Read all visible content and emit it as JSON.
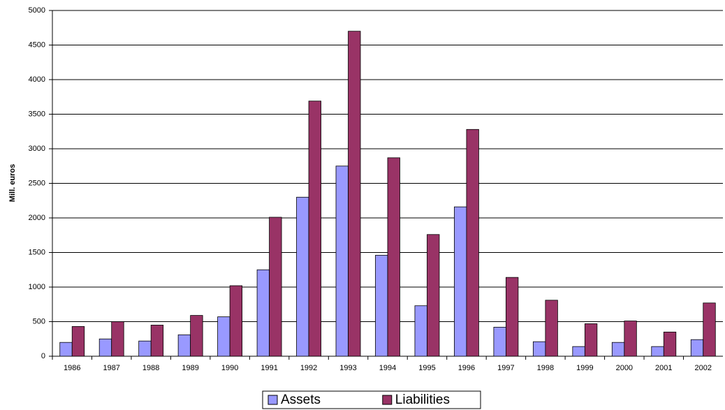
{
  "chart_data": {
    "type": "bar",
    "y_label": "Mill. euros",
    "categories": [
      "1986",
      "1987",
      "1988",
      "1989",
      "1990",
      "1991",
      "1992",
      "1993",
      "1994",
      "1995",
      "1996",
      "1997",
      "1998",
      "1999",
      "2000",
      "2001",
      "2002"
    ],
    "series": [
      {
        "name": "Assets",
        "color": "#9999ff",
        "values": [
          200,
          250,
          220,
          310,
          570,
          1250,
          2300,
          2750,
          1460,
          730,
          2160,
          420,
          210,
          140,
          200,
          140,
          240
        ]
      },
      {
        "name": "Liabilities",
        "color": "#993366",
        "values": [
          430,
          500,
          450,
          590,
          1020,
          2010,
          3690,
          4700,
          2870,
          1760,
          3280,
          1140,
          810,
          470,
          510,
          350,
          770
        ]
      }
    ],
    "ylim": [
      0,
      5000
    ],
    "yticks": [
      0,
      500,
      1000,
      1500,
      2000,
      2500,
      3000,
      3500,
      4000,
      4500,
      5000
    ],
    "grid": true,
    "legend": "bottom"
  }
}
